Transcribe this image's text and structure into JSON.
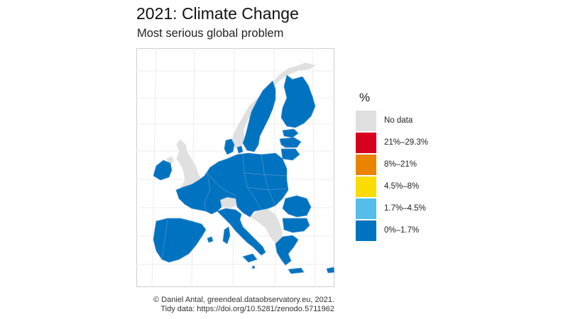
{
  "title": "2021: Climate Change",
  "subtitle": "Most serious global problem",
  "legend": {
    "title": "%",
    "items": [
      {
        "label": "No data",
        "color": "#e0e0e0"
      },
      {
        "label": "21%–29.3%",
        "color": "#d7001e"
      },
      {
        "label": "8%–21%",
        "color": "#e98300"
      },
      {
        "label": "4.5%–8%",
        "color": "#fbdc00"
      },
      {
        "label": "1.7%–4.5%",
        "color": "#54bde8"
      },
      {
        "label": "0%–1.7%",
        "color": "#0073c0"
      }
    ]
  },
  "map": {
    "region": "EU-27",
    "colors": {
      "data": "#0073c0",
      "nodata": "#e0e0e0",
      "border": "#4f94cf"
    }
  },
  "caption": {
    "line1": "© Daniel Antal, greendeal.dataobservatory.eu, 2021.",
    "line2": "Tidy data: https://doi.org/10.5281/zenodo.5711962"
  }
}
